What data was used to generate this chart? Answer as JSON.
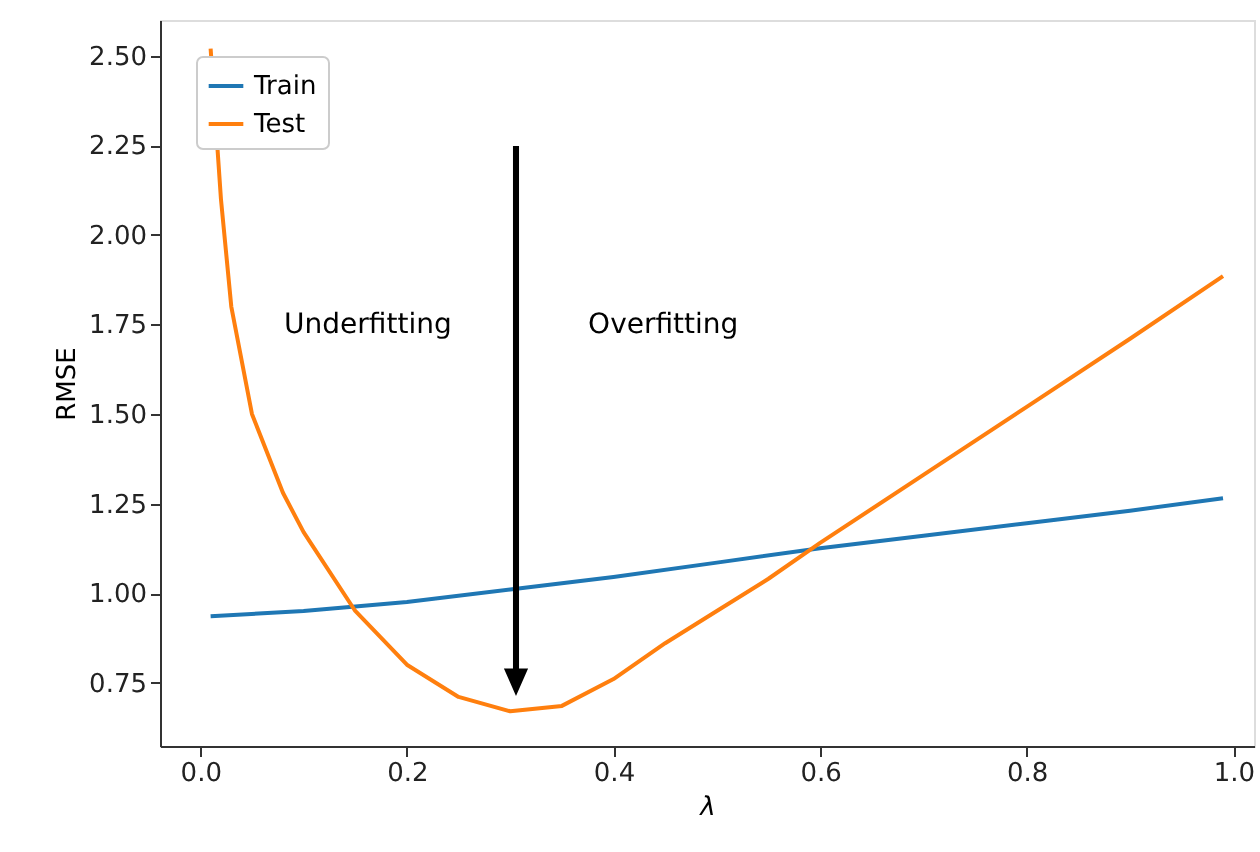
{
  "chart_data": {
    "type": "line",
    "xlabel": "λ",
    "ylabel": "RMSE",
    "xlim": [
      -0.039,
      1.02
    ],
    "xticks": [
      {
        "value": 0,
        "label": "0.0"
      },
      0.2,
      0.4,
      0.6,
      0.8,
      {
        "value": 1,
        "label": "1.0"
      }
    ],
    "ylim": [
      0.573,
      2.6
    ],
    "yticks": [
      {
        "value": 0.75,
        "label": "0.75"
      },
      {
        "value": 1,
        "label": "1.00"
      },
      {
        "value": 1.25,
        "label": "1.25"
      },
      {
        "value": 1.5,
        "label": "1.50"
      },
      {
        "value": 1.75,
        "label": "1.75"
      },
      {
        "value": 2,
        "label": "2.00"
      },
      {
        "value": 2.25,
        "label": "2.25"
      },
      {
        "value": 2.5,
        "label": "2.50"
      }
    ],
    "series": [
      {
        "name": "Train",
        "color": "#1f77b4",
        "x": [
          0.01,
          0.1,
          0.2,
          0.3,
          0.4,
          0.5,
          0.6,
          0.7,
          0.8,
          0.9,
          0.99
        ],
        "values": [
          0.935,
          0.95,
          0.975,
          1.01,
          1.045,
          1.085,
          1.125,
          1.16,
          1.195,
          1.23,
          1.265
        ]
      },
      {
        "name": "Test",
        "color": "#ff7f0e",
        "x": [
          0.01,
          0.02,
          0.03,
          0.05,
          0.08,
          0.1,
          0.15,
          0.2,
          0.25,
          0.3,
          0.35,
          0.4,
          0.45,
          0.5,
          0.55,
          0.6,
          0.7,
          0.8,
          0.9,
          0.99
        ],
        "values": [
          2.52,
          2.1,
          1.8,
          1.5,
          1.28,
          1.17,
          0.95,
          0.8,
          0.71,
          0.67,
          0.685,
          0.76,
          0.86,
          0.95,
          1.04,
          1.14,
          1.33,
          1.52,
          1.71,
          1.885
        ]
      }
    ],
    "annotations": [
      "Underfitting",
      "Overfitting"
    ],
    "legend": "top left",
    "grid": false,
    "marker": "none",
    "line_style": "solid"
  }
}
